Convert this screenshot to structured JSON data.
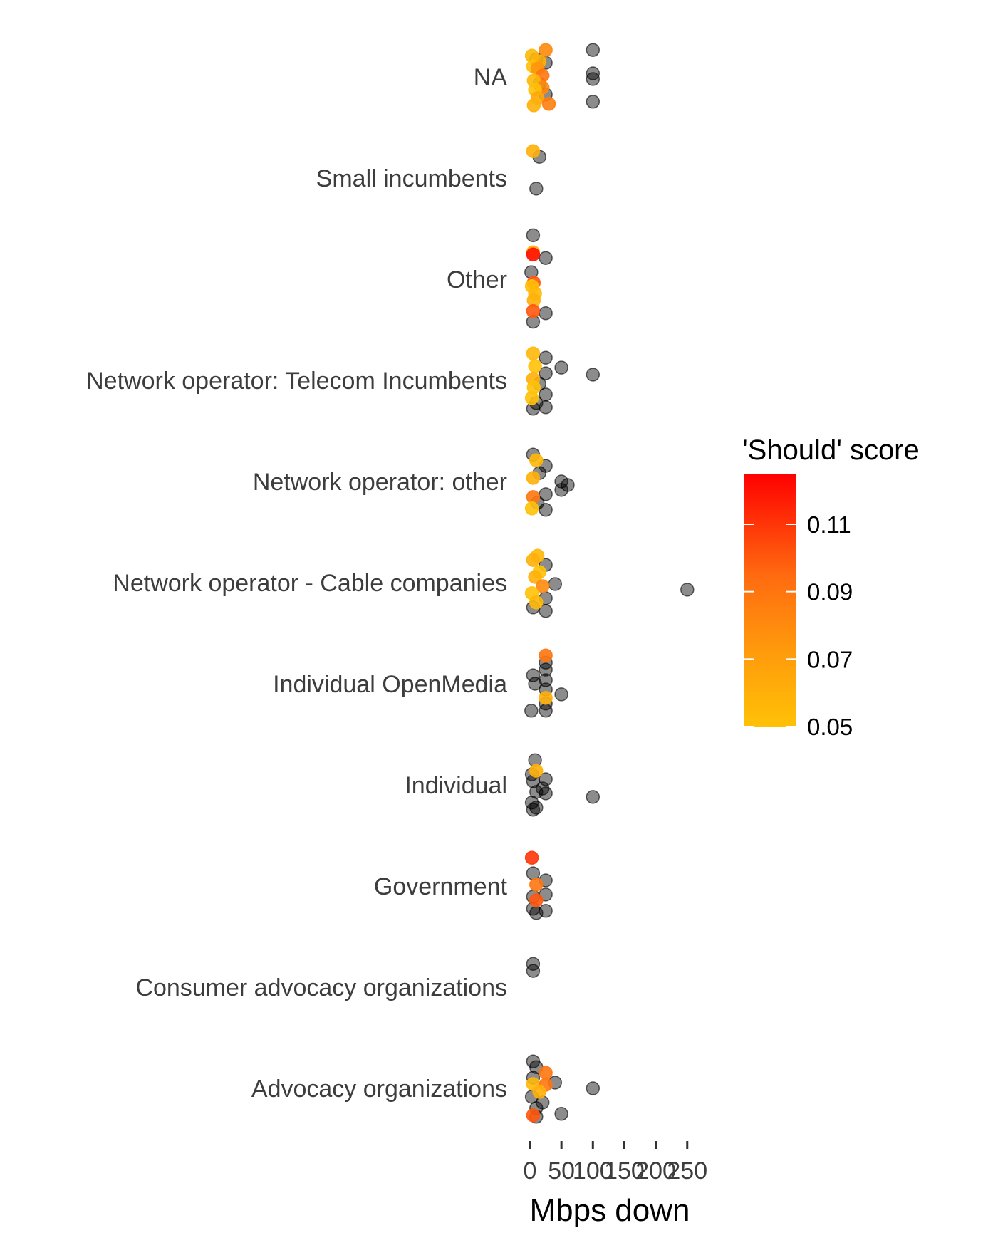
{
  "chart_data": {
    "type": "scatter",
    "title": "",
    "xlabel": "Mbps down",
    "ylabel": "",
    "xlim": [
      -2,
      270
    ],
    "x_ticks": [
      0,
      50,
      100,
      150,
      200,
      250
    ],
    "x_tick_labels": [
      "0",
      "50",
      "100",
      "150",
      "200",
      "250"
    ],
    "grid": false,
    "categories": [
      "NA",
      "Small incumbents",
      "Other",
      "Network operator: Telecom Incumbents",
      "Network operator: other",
      "Network operator - Cable companies",
      "Individual OpenMedia",
      "Individual",
      "Government",
      "Consumer advocacy organizations",
      "Advocacy organizations"
    ],
    "colorbar": {
      "title": "'Should' score",
      "min": 0.05,
      "max": 0.125,
      "ticks": [
        0.05,
        0.07,
        0.09,
        0.11
      ],
      "tick_labels": [
        "0.05",
        "0.07",
        "0.09",
        "0.11"
      ],
      "low_color": "#FFC107",
      "high_color": "#FF0000",
      "legend_position": "right"
    },
    "missing_color": "#000000",
    "point_opacity": 0.45,
    "points": [
      {
        "category": "NA",
        "jitter": -0.38,
        "x": 25,
        "score": 0.08
      },
      {
        "category": "NA",
        "jitter": -0.38,
        "x": 100,
        "score": null
      },
      {
        "category": "NA",
        "jitter": -0.3,
        "x": 3,
        "score": 0.055
      },
      {
        "category": "NA",
        "jitter": -0.25,
        "x": 10,
        "score": null
      },
      {
        "category": "NA",
        "jitter": -0.22,
        "x": 15,
        "score": 0.06
      },
      {
        "category": "NA",
        "jitter": -0.2,
        "x": 25,
        "score": null
      },
      {
        "category": "NA",
        "jitter": -0.15,
        "x": 5,
        "score": 0.05
      },
      {
        "category": "NA",
        "jitter": -0.12,
        "x": 12,
        "score": 0.075
      },
      {
        "category": "NA",
        "jitter": -0.05,
        "x": 100,
        "score": null
      },
      {
        "category": "NA",
        "jitter": -0.02,
        "x": 20,
        "score": 0.09
      },
      {
        "category": "NA",
        "jitter": 0.03,
        "x": 100,
        "score": null
      },
      {
        "category": "NA",
        "jitter": 0.05,
        "x": 6,
        "score": 0.055
      },
      {
        "category": "NA",
        "jitter": 0.1,
        "x": 15,
        "score": null
      },
      {
        "category": "NA",
        "jitter": 0.15,
        "x": 20,
        "score": 0.08
      },
      {
        "category": "NA",
        "jitter": 0.18,
        "x": 8,
        "score": 0.05
      },
      {
        "category": "NA",
        "jitter": 0.25,
        "x": 25,
        "score": null
      },
      {
        "category": "NA",
        "jitter": 0.3,
        "x": 12,
        "score": 0.065
      },
      {
        "category": "NA",
        "jitter": 0.35,
        "x": 100,
        "score": null
      },
      {
        "category": "NA",
        "jitter": 0.38,
        "x": 30,
        "score": 0.085
      },
      {
        "category": "NA",
        "jitter": 0.4,
        "x": 6,
        "score": 0.06
      },
      {
        "category": "Small incumbents",
        "jitter": -0.38,
        "x": 5,
        "score": 0.06
      },
      {
        "category": "Small incumbents",
        "jitter": -0.3,
        "x": 15,
        "score": null
      },
      {
        "category": "Small incumbents",
        "jitter": 0.15,
        "x": 10,
        "score": null
      },
      {
        "category": "Other",
        "jitter": -0.62,
        "x": 5,
        "score": null
      },
      {
        "category": "Other",
        "jitter": -0.38,
        "x": 5,
        "score": 0.06
      },
      {
        "category": "Other",
        "jitter": -0.35,
        "x": 5,
        "score": 0.12
      },
      {
        "category": "Other",
        "jitter": -0.3,
        "x": 25,
        "score": null
      },
      {
        "category": "Other",
        "jitter": -0.1,
        "x": 2,
        "score": null
      },
      {
        "category": "Other",
        "jitter": 0.05,
        "x": 6,
        "score": 0.1
      },
      {
        "category": "Other",
        "jitter": 0.1,
        "x": 3,
        "score": 0.05
      },
      {
        "category": "Other",
        "jitter": 0.2,
        "x": 8,
        "score": 0.055
      },
      {
        "category": "Other",
        "jitter": 0.3,
        "x": 6,
        "score": 0.06
      },
      {
        "category": "Other",
        "jitter": 0.45,
        "x": 5,
        "score": 0.1
      },
      {
        "category": "Other",
        "jitter": 0.48,
        "x": 25,
        "score": null
      },
      {
        "category": "Other",
        "jitter": 0.6,
        "x": 5,
        "score": null
      },
      {
        "category": "Network operator: Telecom Incumbents",
        "jitter": -0.38,
        "x": 5,
        "score": 0.055
      },
      {
        "category": "Network operator: Telecom Incumbents",
        "jitter": -0.32,
        "x": 25,
        "score": null
      },
      {
        "category": "Network operator: Telecom Incumbents",
        "jitter": -0.2,
        "x": 8,
        "score": 0.05
      },
      {
        "category": "Network operator: Telecom Incumbents",
        "jitter": -0.18,
        "x": 50,
        "score": null
      },
      {
        "category": "Network operator: Telecom Incumbents",
        "jitter": -0.1,
        "x": 25,
        "score": null
      },
      {
        "category": "Network operator: Telecom Incumbents",
        "jitter": -0.08,
        "x": 100,
        "score": null
      },
      {
        "category": "Network operator: Telecom Incumbents",
        "jitter": -0.02,
        "x": 5,
        "score": 0.06
      },
      {
        "category": "Network operator: Telecom Incumbents",
        "jitter": 0.05,
        "x": 15,
        "score": null
      },
      {
        "category": "Network operator: Telecom Incumbents",
        "jitter": 0.1,
        "x": 6,
        "score": 0.05
      },
      {
        "category": "Network operator: Telecom Incumbents",
        "jitter": 0.2,
        "x": 25,
        "score": null
      },
      {
        "category": "Network operator: Telecom Incumbents",
        "jitter": 0.25,
        "x": 3,
        "score": 0.05
      },
      {
        "category": "Network operator: Telecom Incumbents",
        "jitter": 0.32,
        "x": 10,
        "score": null
      },
      {
        "category": "Network operator: Telecom Incumbents",
        "jitter": 0.38,
        "x": 25,
        "score": null
      },
      {
        "category": "Network operator: Telecom Incumbents",
        "jitter": 0.4,
        "x": 5,
        "score": null
      },
      {
        "category": "Network operator: other",
        "jitter": -0.38,
        "x": 5,
        "score": null
      },
      {
        "category": "Network operator: other",
        "jitter": -0.3,
        "x": 10,
        "score": 0.055
      },
      {
        "category": "Network operator: other",
        "jitter": -0.22,
        "x": 25,
        "score": null
      },
      {
        "category": "Network operator: other",
        "jitter": -0.12,
        "x": 15,
        "score": null
      },
      {
        "category": "Network operator: other",
        "jitter": -0.05,
        "x": 5,
        "score": 0.06
      },
      {
        "category": "Network operator: other",
        "jitter": 0.0,
        "x": 50,
        "score": null
      },
      {
        "category": "Network operator: other",
        "jitter": 0.05,
        "x": 60,
        "score": null
      },
      {
        "category": "Network operator: other",
        "jitter": 0.12,
        "x": 50,
        "score": null
      },
      {
        "category": "Network operator: other",
        "jitter": 0.18,
        "x": 25,
        "score": null
      },
      {
        "category": "Network operator: other",
        "jitter": 0.22,
        "x": 5,
        "score": 0.09
      },
      {
        "category": "Network operator: other",
        "jitter": 0.3,
        "x": 12,
        "score": null
      },
      {
        "category": "Network operator: other",
        "jitter": 0.38,
        "x": 3,
        "score": 0.05
      },
      {
        "category": "Network operator: other",
        "jitter": 0.4,
        "x": 25,
        "score": null
      },
      {
        "category": "Network operator - Cable companies",
        "jitter": -0.38,
        "x": 12,
        "score": 0.055
      },
      {
        "category": "Network operator - Cable companies",
        "jitter": -0.32,
        "x": 5,
        "score": 0.06
      },
      {
        "category": "Network operator - Cable companies",
        "jitter": -0.25,
        "x": 25,
        "score": null
      },
      {
        "category": "Network operator - Cable companies",
        "jitter": -0.15,
        "x": 15,
        "score": 0.05
      },
      {
        "category": "Network operator - Cable companies",
        "jitter": -0.08,
        "x": 8,
        "score": 0.06
      },
      {
        "category": "Network operator - Cable companies",
        "jitter": 0.02,
        "x": 40,
        "score": null
      },
      {
        "category": "Network operator - Cable companies",
        "jitter": 0.05,
        "x": 20,
        "score": 0.08
      },
      {
        "category": "Network operator - Cable companies",
        "jitter": 0.1,
        "x": 250,
        "score": null
      },
      {
        "category": "Network operator - Cable companies",
        "jitter": 0.15,
        "x": 3,
        "score": 0.05
      },
      {
        "category": "Network operator - Cable companies",
        "jitter": 0.22,
        "x": 25,
        "score": null
      },
      {
        "category": "Network operator - Cable companies",
        "jitter": 0.28,
        "x": 10,
        "score": 0.055
      },
      {
        "category": "Network operator - Cable companies",
        "jitter": 0.35,
        "x": 5,
        "score": null
      },
      {
        "category": "Network operator - Cable companies",
        "jitter": 0.4,
        "x": 25,
        "score": null
      },
      {
        "category": "Individual OpenMedia",
        "jitter": -0.4,
        "x": 25,
        "score": 0.09
      },
      {
        "category": "Individual OpenMedia",
        "jitter": -0.3,
        "x": 25,
        "score": null
      },
      {
        "category": "Individual OpenMedia",
        "jitter": -0.2,
        "x": 25,
        "score": null
      },
      {
        "category": "Individual OpenMedia",
        "jitter": -0.12,
        "x": 5,
        "score": null
      },
      {
        "category": "Individual OpenMedia",
        "jitter": -0.05,
        "x": 25,
        "score": null
      },
      {
        "category": "Individual OpenMedia",
        "jitter": 0.0,
        "x": 8,
        "score": null
      },
      {
        "category": "Individual OpenMedia",
        "jitter": 0.08,
        "x": 25,
        "score": null
      },
      {
        "category": "Individual OpenMedia",
        "jitter": 0.15,
        "x": 50,
        "score": null
      },
      {
        "category": "Individual OpenMedia",
        "jitter": 0.2,
        "x": 25,
        "score": 0.06
      },
      {
        "category": "Individual OpenMedia",
        "jitter": 0.28,
        "x": 25,
        "score": null
      },
      {
        "category": "Individual OpenMedia",
        "jitter": 0.38,
        "x": 2,
        "score": null
      },
      {
        "category": "Individual OpenMedia",
        "jitter": 0.38,
        "x": 25,
        "score": null
      },
      {
        "category": "Individual",
        "jitter": -0.35,
        "x": 8,
        "score": null
      },
      {
        "category": "Individual",
        "jitter": -0.2,
        "x": 10,
        "score": 0.06
      },
      {
        "category": "Individual",
        "jitter": -0.15,
        "x": 3,
        "score": null
      },
      {
        "category": "Individual",
        "jitter": -0.08,
        "x": 25,
        "score": null
      },
      {
        "category": "Individual",
        "jitter": -0.05,
        "x": 5,
        "score": null
      },
      {
        "category": "Individual",
        "jitter": 0.05,
        "x": 20,
        "score": null
      },
      {
        "category": "Individual",
        "jitter": 0.1,
        "x": 10,
        "score": null
      },
      {
        "category": "Individual",
        "jitter": 0.12,
        "x": 25,
        "score": null
      },
      {
        "category": "Individual",
        "jitter": 0.17,
        "x": 100,
        "score": null
      },
      {
        "category": "Individual",
        "jitter": 0.25,
        "x": 3,
        "score": null
      },
      {
        "category": "Individual",
        "jitter": 0.32,
        "x": 10,
        "score": null
      },
      {
        "category": "Individual",
        "jitter": 0.35,
        "x": 5,
        "score": null
      },
      {
        "category": "Government",
        "jitter": -0.4,
        "x": 3,
        "score": 0.11
      },
      {
        "category": "Government",
        "jitter": -0.18,
        "x": 5,
        "score": null
      },
      {
        "category": "Government",
        "jitter": -0.08,
        "x": 25,
        "score": null
      },
      {
        "category": "Government",
        "jitter": -0.02,
        "x": 10,
        "score": 0.09
      },
      {
        "category": "Government",
        "jitter": 0.12,
        "x": 25,
        "score": null
      },
      {
        "category": "Government",
        "jitter": 0.15,
        "x": 5,
        "score": null
      },
      {
        "category": "Government",
        "jitter": 0.2,
        "x": 10,
        "score": 0.1
      },
      {
        "category": "Government",
        "jitter": 0.32,
        "x": 5,
        "score": null
      },
      {
        "category": "Government",
        "jitter": 0.35,
        "x": 25,
        "score": null
      },
      {
        "category": "Government",
        "jitter": 0.38,
        "x": 10,
        "score": null
      },
      {
        "category": "Consumer advocacy organizations",
        "jitter": -0.33,
        "x": 5,
        "score": null
      },
      {
        "category": "Consumer advocacy organizations",
        "jitter": -0.23,
        "x": 5,
        "score": null
      },
      {
        "category": "Advocacy organizations",
        "jitter": -0.38,
        "x": 5,
        "score": null
      },
      {
        "category": "Advocacy organizations",
        "jitter": -0.3,
        "x": 10,
        "score": null
      },
      {
        "category": "Advocacy organizations",
        "jitter": -0.22,
        "x": 25,
        "score": 0.09
      },
      {
        "category": "Advocacy organizations",
        "jitter": -0.15,
        "x": 5,
        "score": null
      },
      {
        "category": "Advocacy organizations",
        "jitter": -0.08,
        "x": 40,
        "score": null
      },
      {
        "category": "Advocacy organizations",
        "jitter": -0.06,
        "x": 5,
        "score": 0.055
      },
      {
        "category": "Advocacy organizations",
        "jitter": -0.05,
        "x": 25,
        "score": 0.09
      },
      {
        "category": "Advocacy organizations",
        "jitter": 0.0,
        "x": 100,
        "score": null
      },
      {
        "category": "Advocacy organizations",
        "jitter": 0.05,
        "x": 15,
        "score": 0.06
      },
      {
        "category": "Advocacy organizations",
        "jitter": 0.12,
        "x": 3,
        "score": null
      },
      {
        "category": "Advocacy organizations",
        "jitter": 0.2,
        "x": 20,
        "score": null
      },
      {
        "category": "Advocacy organizations",
        "jitter": 0.28,
        "x": 10,
        "score": null
      },
      {
        "category": "Advocacy organizations",
        "jitter": 0.36,
        "x": 50,
        "score": null
      },
      {
        "category": "Advocacy organizations",
        "jitter": 0.38,
        "x": 5,
        "score": 0.1
      },
      {
        "category": "Advocacy organizations",
        "jitter": 0.4,
        "x": 10,
        "score": null
      }
    ]
  }
}
